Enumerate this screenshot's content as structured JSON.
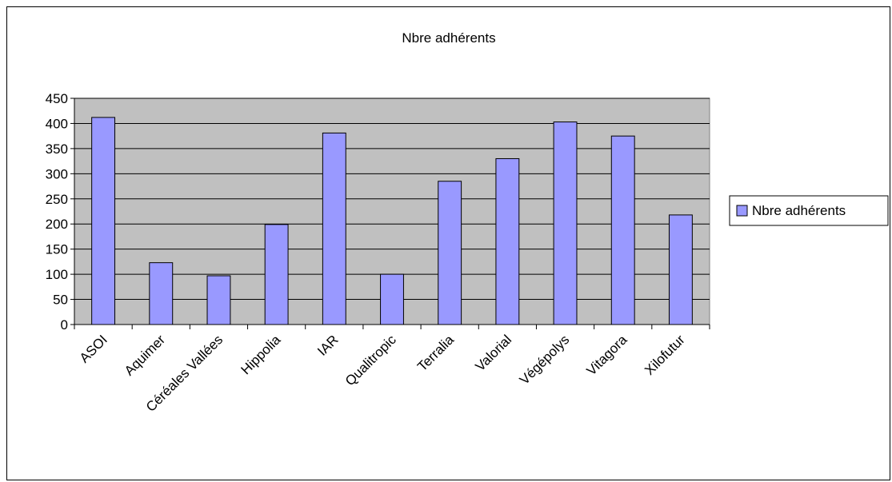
{
  "chart_data": {
    "type": "bar",
    "title": "Nbre adhérents",
    "xlabel": "",
    "ylabel": "",
    "categories": [
      "ASOI",
      "Aquimer",
      "Céréales Vallées",
      "Hippolia",
      "IAR",
      "Qualitropic",
      "Terralia",
      "Valorial",
      "Végépolys",
      "Vitagora",
      "Xilofutur"
    ],
    "series": [
      {
        "name": "Nbre adhérents",
        "values": [
          412,
          123,
          97,
          199,
          381,
          100,
          285,
          330,
          403,
          375,
          218
        ]
      }
    ],
    "ylim": [
      0,
      450
    ],
    "yticks": [
      0,
      50,
      100,
      150,
      200,
      250,
      300,
      350,
      400,
      450
    ],
    "grid": true,
    "legend": "right",
    "colors": {
      "plot_background": "#c0c0c0",
      "bar_fill": "#9999ff",
      "bar_stroke": "#000000",
      "gridline": "#000000"
    }
  }
}
